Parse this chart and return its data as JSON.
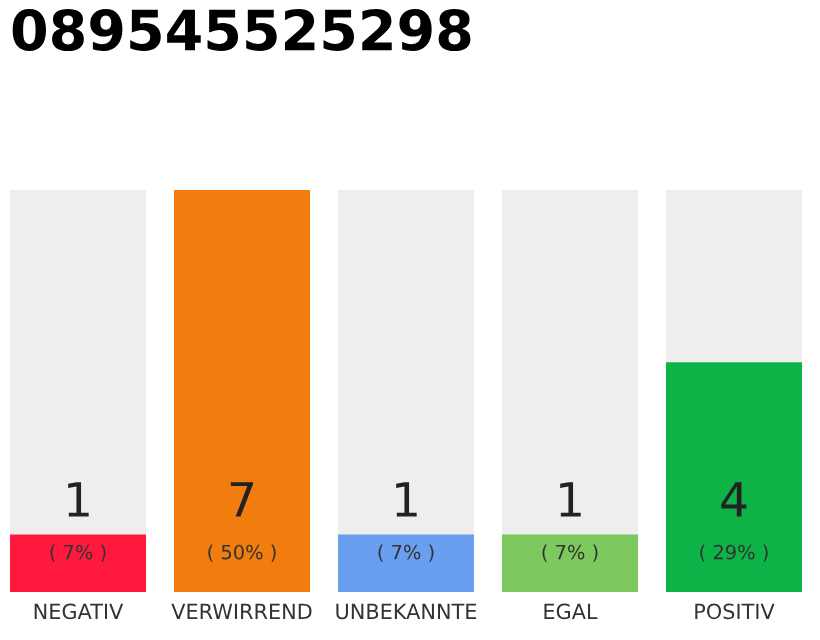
{
  "chart_data": {
    "type": "bar",
    "title": "089545525298",
    "categories": [
      "NEGATIV",
      "VERWIRREND",
      "UNBEKANNTE",
      "EGAL",
      "POSITIV"
    ],
    "values": [
      1,
      7,
      1,
      1,
      4
    ],
    "colors": [
      "#ff1a3d",
      "#f07d0d",
      "#6a9ff0",
      "#7dc95e",
      "#0db346"
    ],
    "value_labels": [
      "1\n( 7% )",
      "7\n( 50% )",
      "1\n( 7% )",
      "1\n( 7% )",
      "4\n( 29% )"
    ]
  }
}
